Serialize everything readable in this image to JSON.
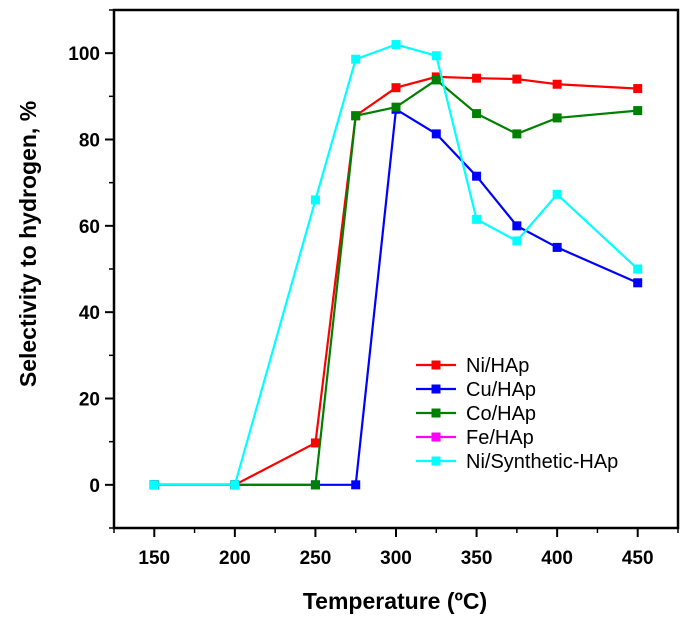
{
  "chart_data": {
    "type": "line",
    "title": "",
    "xlabel": "Temperature (ºC)",
    "ylabel": "Selectivity to hydrogen, %",
    "xlim": [
      125,
      475
    ],
    "ylim": [
      -10,
      110
    ],
    "xticks": [
      150,
      200,
      250,
      300,
      350,
      400,
      450
    ],
    "yticks": [
      0,
      20,
      40,
      60,
      80,
      100
    ],
    "grid": false,
    "legend_position": "bottom-right",
    "series": [
      {
        "name": "Ni/HAp",
        "color": "#ff0000",
        "x": [
          150,
          200,
          250,
          275,
          300,
          325,
          350,
          375,
          400,
          450
        ],
        "y": [
          0,
          0,
          9.7,
          85.5,
          92,
          94.5,
          94.2,
          94,
          92.8,
          91.8
        ]
      },
      {
        "name": "Cu/HAp",
        "color": "#0000ff",
        "x": [
          150,
          200,
          250,
          275,
          300,
          325,
          350,
          375,
          400,
          450
        ],
        "y": [
          0,
          0,
          0,
          0,
          87,
          81.3,
          71.5,
          60,
          55,
          46.8
        ]
      },
      {
        "name": "Co/HAp",
        "color": "#008000",
        "x": [
          150,
          200,
          250,
          275,
          300,
          325,
          350,
          375,
          400,
          450
        ],
        "y": [
          0,
          0,
          0,
          85.5,
          87.5,
          93.8,
          86,
          81.3,
          85,
          86.7
        ]
      },
      {
        "name": "Fe/HAp",
        "color": "#ff00ff",
        "x": [],
        "y": []
      },
      {
        "name": "Ni/Synthetic-HAp",
        "color": "#00ffff",
        "x": [
          150,
          200,
          250,
          275,
          300,
          325,
          350,
          375,
          400,
          450
        ],
        "y": [
          0,
          0,
          66,
          98.6,
          102,
          99.4,
          61.5,
          56.5,
          67.3,
          50
        ]
      }
    ]
  }
}
